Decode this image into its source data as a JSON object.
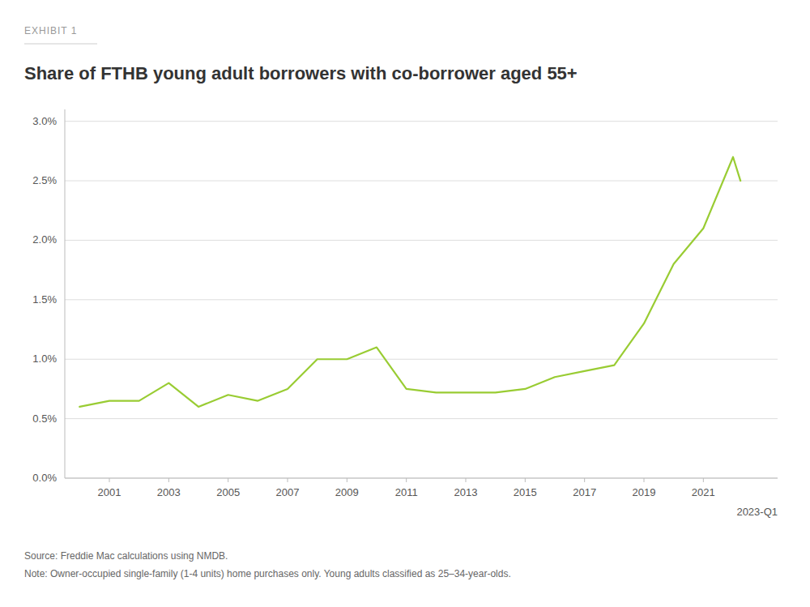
{
  "chart_data": {
    "type": "line",
    "title": "Share of FTHB young adult borrowers with co-borrower aged 55+",
    "subtitle": "EXHIBIT 1",
    "source": "Source: Freddie Mac calculations using NMDB.",
    "note": "Note: Owner-occupied single-family (1-4 units) home purchases only. Young adults classified as 25–34-year-olds.",
    "annotations": [
      {
        "text": "2023-Q1"
      }
    ],
    "color": "#99cc33",
    "x": [
      2000,
      2001,
      2002,
      2003,
      2004,
      2005,
      2006,
      2007,
      2008,
      2009,
      2010,
      2011,
      2012,
      2013,
      2014,
      2015,
      2016,
      2017,
      2018,
      2019,
      2020,
      2021,
      2022,
      2022.25
    ],
    "values": [
      0.006,
      0.0065,
      0.0065,
      0.008,
      0.006,
      0.007,
      0.0065,
      0.0075,
      0.01,
      0.01,
      0.011,
      0.0075,
      0.0072,
      0.0072,
      0.0072,
      0.0075,
      0.0085,
      0.009,
      0.0095,
      0.013,
      0.018,
      0.021,
      0.027,
      0.025
    ],
    "xlim": [
      1999.5,
      2023.5
    ],
    "xticks": [
      2001,
      2003,
      2005,
      2007,
      2009,
      2011,
      2013,
      2015,
      2017,
      2019,
      2021
    ],
    "ylim": [
      0.0,
      0.031
    ],
    "yticks": [
      {
        "value": 0.0,
        "label": "0.0%"
      },
      {
        "value": 0.005,
        "label": "0.5%"
      },
      {
        "value": 0.01,
        "label": "1.0%"
      },
      {
        "value": 0.015,
        "label": "1.5%"
      },
      {
        "value": 0.02,
        "label": "2.0%"
      },
      {
        "value": 0.025,
        "label": "2.5%"
      },
      {
        "value": 0.03,
        "label": "3.0%"
      }
    ],
    "grid": true
  }
}
